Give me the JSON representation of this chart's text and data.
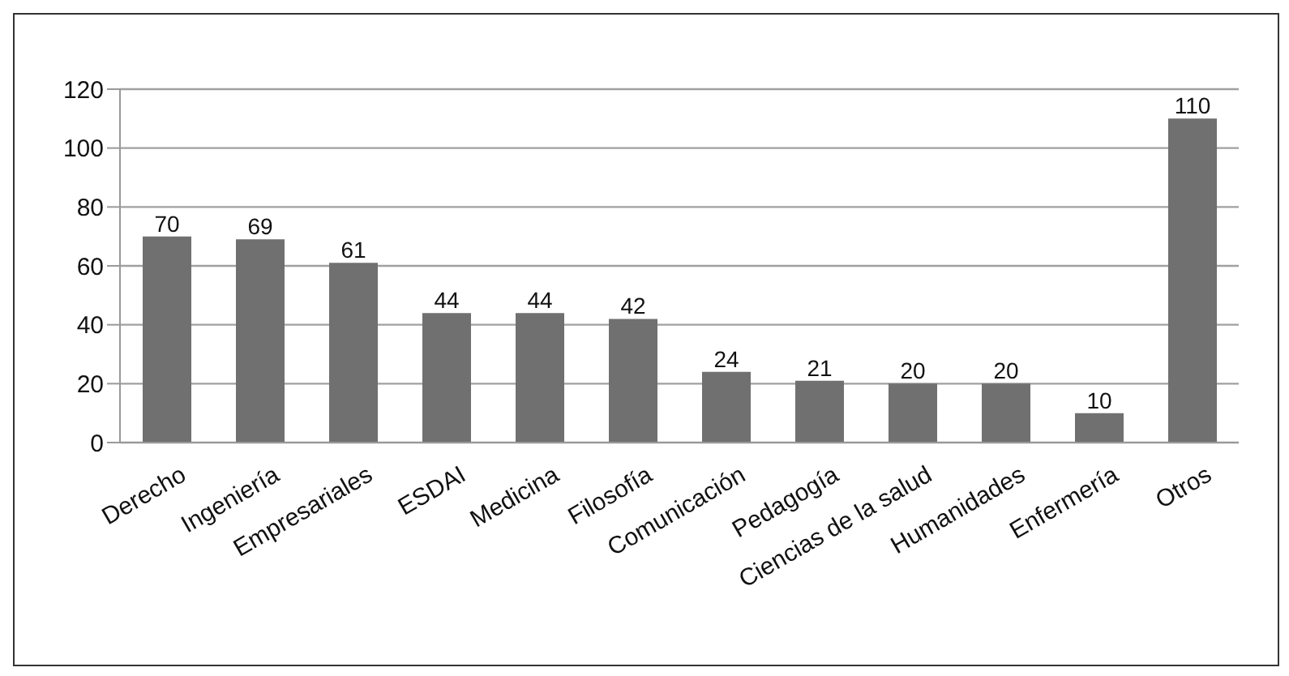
{
  "chart_data": {
    "type": "bar",
    "categories": [
      "Derecho",
      "Ingeniería",
      "Empresariales",
      "ESDAI",
      "Medicina",
      "Filosofía",
      "Comunicación",
      "Pedagogía",
      "Ciencias de la salud",
      "Humanidades",
      "Enfermería",
      "Otros"
    ],
    "values": [
      70,
      69,
      61,
      44,
      44,
      42,
      24,
      21,
      20,
      20,
      10,
      110
    ],
    "color": "#707070",
    "ylim": [
      0,
      120
    ],
    "yticks": [
      0,
      20,
      40,
      60,
      80,
      100,
      120
    ],
    "grid": "y",
    "data_labels": true
  }
}
